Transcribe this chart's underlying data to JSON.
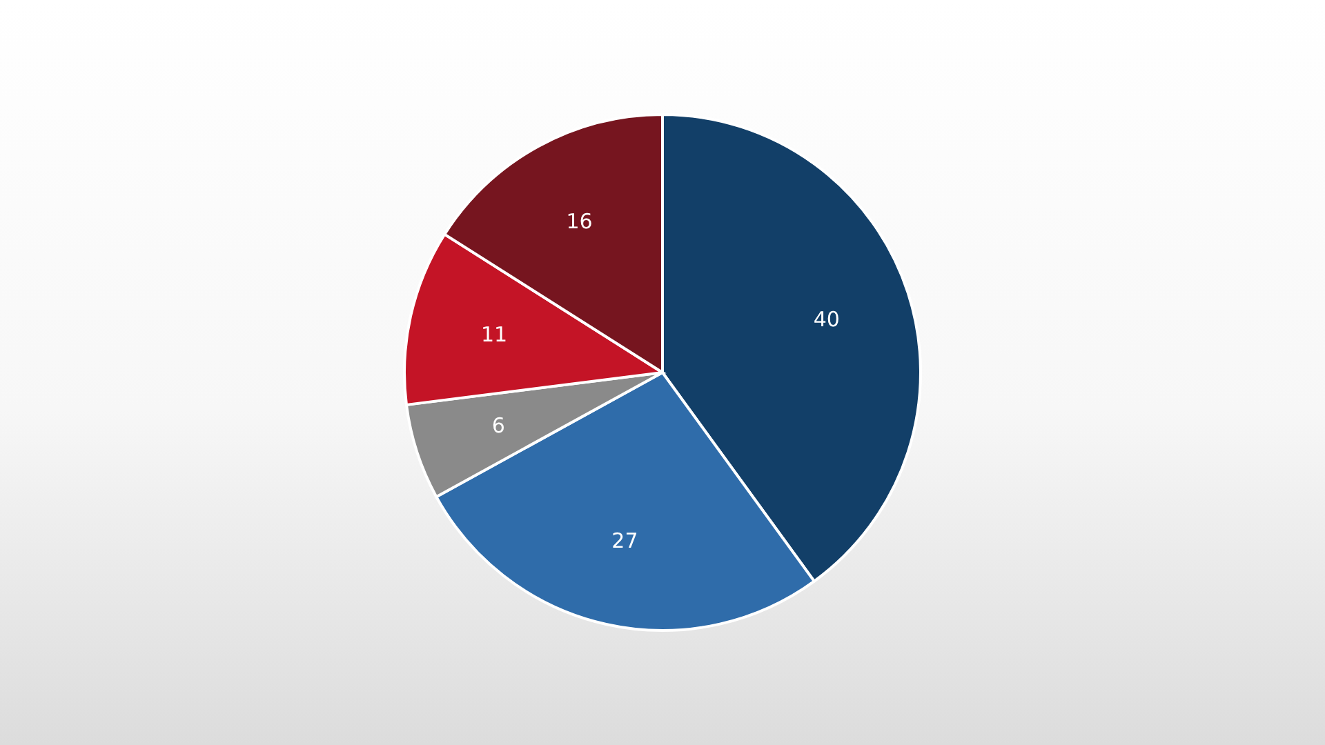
{
  "chart_data": {
    "type": "pie",
    "categories": [
      null,
      null,
      null,
      null,
      null
    ],
    "values": [
      40,
      27,
      6,
      11,
      16
    ],
    "colors": [
      "#123f68",
      "#2f6caa",
      "#8a8a8a",
      "#c41426",
      "#76151f"
    ],
    "data_labels": true
  }
}
